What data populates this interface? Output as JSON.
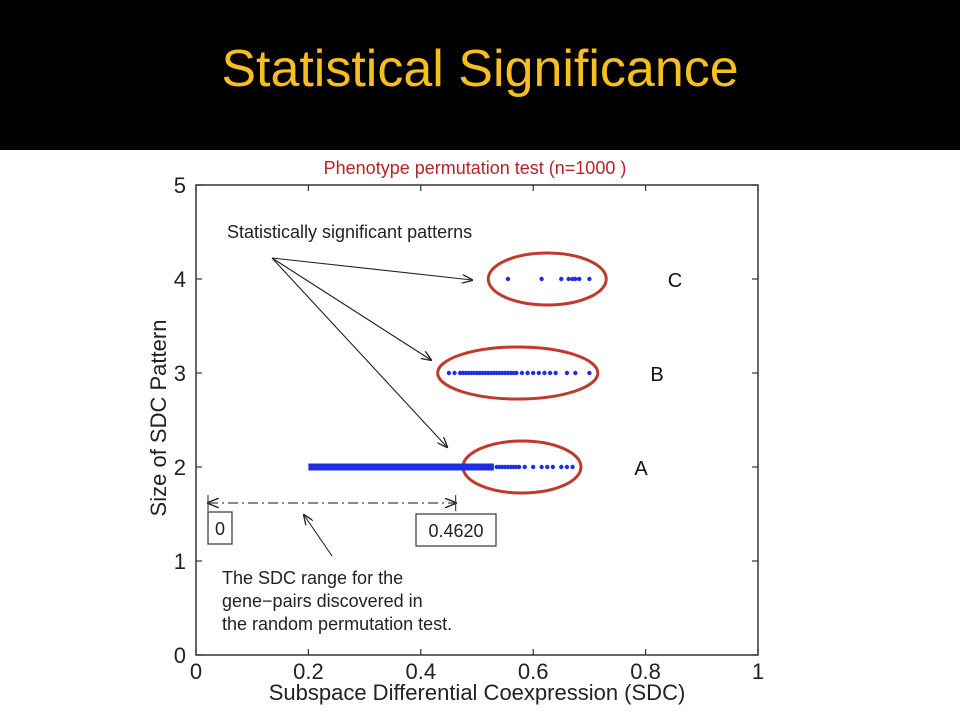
{
  "slide": {
    "title": "Statistical Significance",
    "title_color": "#f6be1e",
    "header_background": "#000000"
  },
  "chart_data": {
    "type": "scatter",
    "title": "Phenotype permutation test (n=1000 )",
    "xlabel": "Subspace Differential Coexpression (SDC)",
    "ylabel": "Size of SDC Pattern",
    "xlim": [
      0,
      1
    ],
    "ylim": [
      0,
      5
    ],
    "x_ticks": [
      "0",
      "0.2",
      "0.4",
      "0.6",
      "0.8",
      "1"
    ],
    "y_ticks": [
      "0",
      "1",
      "2",
      "3",
      "4",
      "5"
    ],
    "grid": false,
    "series_color": "#1f2fe0",
    "highlight_color": "#c0392b",
    "series": [
      {
        "y": 4,
        "x": [
          0.555,
          0.615,
          0.65,
          0.663,
          0.67,
          0.675,
          0.682,
          0.7
        ]
      },
      {
        "y": 3,
        "x": [
          0.45,
          0.46,
          0.47,
          0.475,
          0.48,
          0.485,
          0.49,
          0.495,
          0.5,
          0.505,
          0.51,
          0.515,
          0.52,
          0.525,
          0.53,
          0.535,
          0.54,
          0.545,
          0.55,
          0.555,
          0.56,
          0.565,
          0.57,
          0.58,
          0.59,
          0.6,
          0.61,
          0.62,
          0.63,
          0.64,
          0.66,
          0.675,
          0.7
        ]
      },
      {
        "y": 2,
        "x_dense_range": [
          0.2,
          0.53
        ],
        "x": [
          0.535,
          0.54,
          0.545,
          0.55,
          0.555,
          0.56,
          0.565,
          0.57,
          0.575,
          0.585,
          0.6,
          0.615,
          0.625,
          0.635,
          0.65,
          0.66,
          0.67
        ]
      }
    ],
    "groups": [
      {
        "label": "C",
        "y": 4
      },
      {
        "label": "B",
        "y": 3
      },
      {
        "label": "A",
        "y": 2
      }
    ],
    "annotations": {
      "significant": "Statistically significant patterns",
      "range_start": "0",
      "range_end": "0.4620",
      "range_value": 0.462,
      "range_note": [
        "The SDC range for the",
        "gene−pairs discovered in",
        "the random permutation test."
      ]
    }
  }
}
